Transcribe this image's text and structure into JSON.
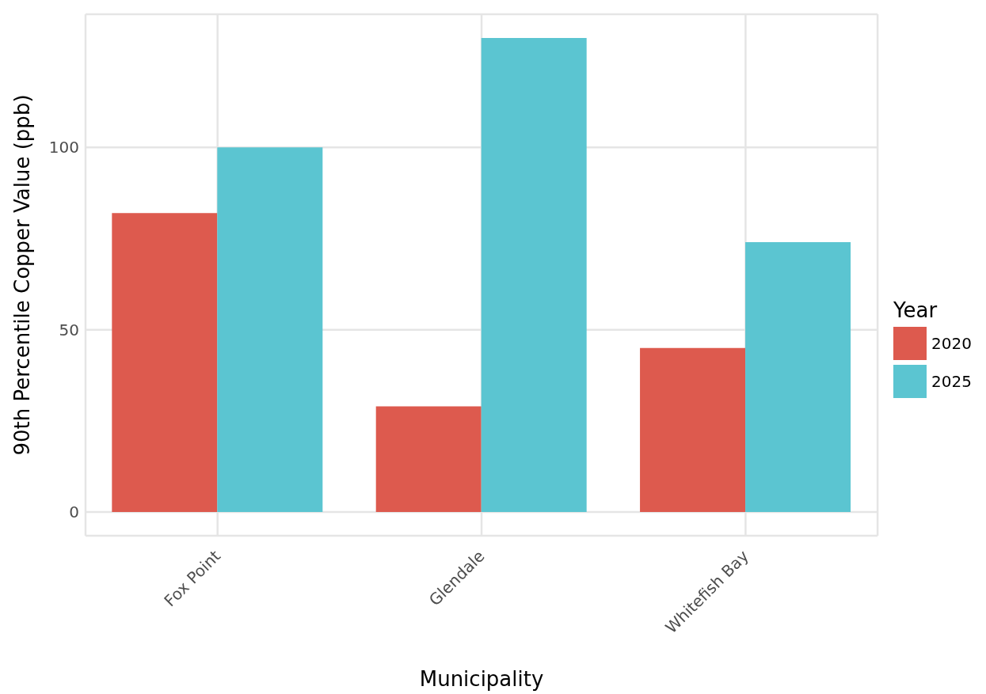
{
  "chart_data": {
    "type": "bar",
    "xlabel": "Municipality",
    "ylabel": "90th Percentile Copper Value (ppb)",
    "legend_title": "Year",
    "categories": [
      "Fox Point",
      "Glendale",
      "Whitefish Bay"
    ],
    "series": [
      {
        "name": "2020",
        "color": "#dd5a4e",
        "values": [
          82,
          29,
          45
        ]
      },
      {
        "name": "2025",
        "color": "#5bc5d1",
        "values": [
          100,
          130,
          74
        ]
      }
    ],
    "ylim": [
      -6.5,
      136.5
    ],
    "yticks": [
      0,
      50,
      100
    ],
    "grid": true,
    "legend": "right"
  }
}
